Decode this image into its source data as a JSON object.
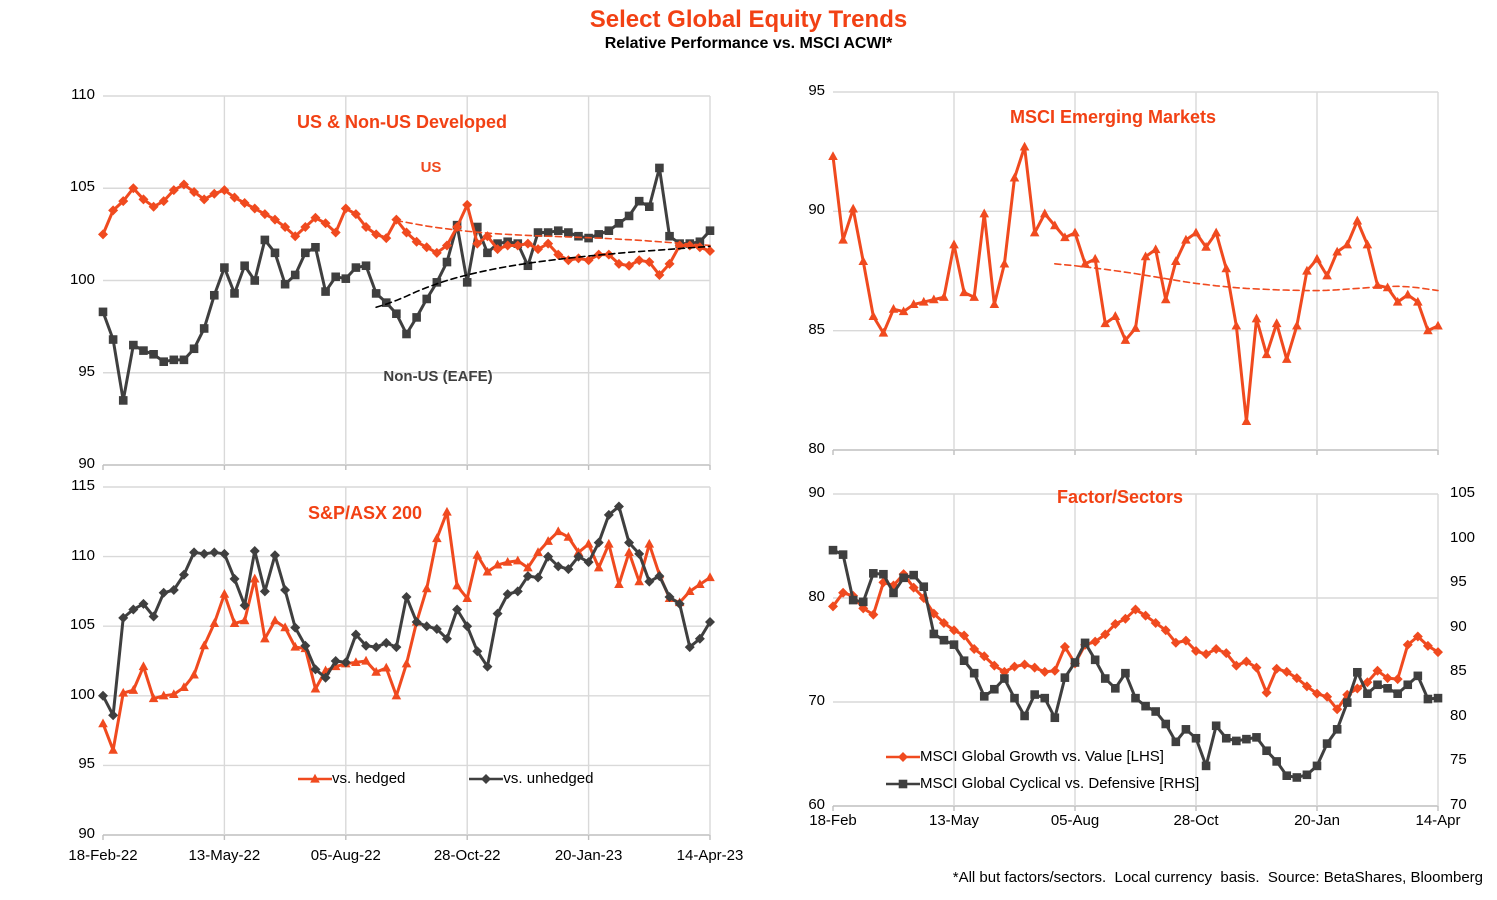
{
  "header": {
    "title": "Select Global Equity Trends",
    "subtitle": "Relative Performance vs. MSCI ACWI*"
  },
  "footer": {
    "note": "*All but factors/sectors.  Local currency  basis.  Source: BetaShares, Bloomberg"
  },
  "colors": {
    "accent": "#F24114",
    "series_orange": "#F04A1F",
    "series_dark": "#3F3F3F",
    "trend_black": "#000000",
    "grid": "#D9D9D9",
    "axis": "#BFBFBF"
  },
  "chart_data": [
    {
      "type": "line",
      "title": "US & Non-US Developed",
      "ylim": [
        90,
        110
      ],
      "yticks": [
        90,
        95,
        100,
        105,
        110
      ],
      "x_labels": [],
      "x_range_note": "weekly 18-Feb-22 to 14-Apr-23, gridlines at 13-May-22, 05-Aug-22, 28-Oct-22, 20-Jan-23, 14-Apr-23",
      "legend_position": "none",
      "grid": true,
      "annotations": [
        {
          "text": "US",
          "color": "#F04A1F"
        },
        {
          "text": "Non-US (EAFE)",
          "color": "#3F3F3F"
        }
      ],
      "series": [
        {
          "name": "Non-US (EAFE)",
          "color": "#3F3F3F",
          "marker": "square",
          "dash": false,
          "start": 0,
          "values": [
            98.3,
            96.8,
            93.5,
            96.5,
            96.2,
            96.0,
            95.6,
            95.7,
            95.7,
            96.3,
            97.4,
            99.2,
            100.7,
            99.3,
            100.8,
            100.0,
            102.2,
            101.5,
            99.8,
            100.3,
            101.5,
            101.8,
            99.4,
            100.2,
            100.1,
            100.7,
            100.8,
            99.3,
            98.8,
            98.2,
            97.1,
            98.0,
            99.0,
            99.9,
            101.0,
            103.0,
            99.9,
            102.9,
            101.5,
            102.0,
            102.1,
            102.0,
            100.8,
            102.6,
            102.6,
            102.7,
            102.6,
            102.4,
            102.3,
            102.5,
            102.7,
            103.1,
            103.5,
            104.3,
            104.0,
            106.1,
            102.4,
            102.0,
            102.0,
            102.1,
            102.7
          ]
        },
        {
          "name": "US",
          "color": "#F04A1F",
          "marker": "diamond",
          "dash": false,
          "start": 0,
          "values": [
            102.5,
            103.8,
            104.3,
            105.0,
            104.4,
            104.0,
            104.3,
            104.9,
            105.2,
            104.8,
            104.4,
            104.7,
            104.9,
            104.5,
            104.2,
            103.9,
            103.6,
            103.3,
            102.9,
            102.4,
            102.9,
            103.4,
            103.1,
            102.6,
            103.9,
            103.6,
            102.9,
            102.5,
            102.3,
            103.3,
            102.6,
            102.1,
            101.8,
            101.5,
            101.9,
            102.9,
            104.1,
            102.0,
            102.4,
            101.7,
            101.9,
            101.9,
            102.0,
            101.7,
            102.0,
            101.4,
            101.1,
            101.2,
            101.1,
            101.4,
            101.4,
            100.9,
            100.8,
            101.1,
            101.0,
            100.3,
            100.9,
            101.9,
            101.9,
            101.8,
            101.6
          ]
        },
        {
          "name": "US trend",
          "color": "#F04A1F",
          "marker": "none",
          "dash": true,
          "start": 29,
          "values": [
            103.25,
            103.15,
            103.05,
            102.95,
            102.87,
            102.8,
            102.73,
            102.67,
            102.62,
            102.57,
            102.53,
            102.5,
            102.47,
            102.44,
            102.42,
            102.4,
            102.38,
            102.36,
            102.34,
            102.32,
            102.3,
            102.27,
            102.24,
            102.21,
            102.18,
            102.14,
            102.1,
            102.06,
            102.02,
            101.98,
            101.94,
            101.9
          ]
        },
        {
          "name": "Non-US (EAFE) trend",
          "color": "#000000",
          "marker": "none",
          "dash": true,
          "start": 27,
          "values": [
            98.55,
            98.72,
            98.92,
            99.15,
            99.4,
            99.62,
            99.82,
            100.0,
            100.16,
            100.3,
            100.43,
            100.55,
            100.66,
            100.76,
            100.85,
            100.93,
            101.01,
            101.08,
            101.15,
            101.21,
            101.27,
            101.33,
            101.38,
            101.43,
            101.48,
            101.53,
            101.57,
            101.61,
            101.65,
            101.69,
            101.73,
            101.77,
            101.81,
            101.85
          ]
        }
      ]
    },
    {
      "type": "line",
      "title": "MSCI Emerging Markets",
      "ylim": [
        80,
        95
      ],
      "yticks": [
        80,
        85,
        90,
        95
      ],
      "x_labels": [],
      "x_range_note": "weekly 18-Feb-22 to 14-Apr-23",
      "legend_position": "none",
      "grid": true,
      "annotations": [],
      "series": [
        {
          "name": "MSCI Emerging Markets",
          "color": "#F04A1F",
          "marker": "triangle",
          "dash": false,
          "start": 0,
          "values": [
            92.3,
            88.8,
            90.1,
            87.9,
            85.6,
            84.9,
            85.9,
            85.8,
            86.1,
            86.2,
            86.3,
            86.4,
            88.6,
            86.6,
            86.4,
            89.9,
            86.1,
            87.8,
            91.4,
            92.7,
            89.1,
            89.9,
            89.4,
            88.9,
            89.1,
            87.8,
            88.0,
            85.3,
            85.6,
            84.6,
            85.1,
            88.1,
            88.4,
            86.3,
            87.9,
            88.8,
            89.1,
            88.5,
            89.1,
            87.6,
            85.2,
            81.2,
            85.5,
            84.0,
            85.3,
            83.8,
            85.2,
            87.5,
            88.0,
            87.3,
            88.3,
            88.6,
            89.6,
            88.6,
            86.9,
            86.8,
            86.2,
            86.5,
            86.2,
            85.0,
            85.2
          ]
        },
        {
          "name": "EM trend",
          "color": "#F04A1F",
          "marker": "none",
          "dash": true,
          "start": 22,
          "values": [
            87.8,
            87.76,
            87.72,
            87.67,
            87.62,
            87.57,
            87.51,
            87.45,
            87.39,
            87.32,
            87.25,
            87.18,
            87.11,
            87.04,
            86.98,
            86.93,
            86.88,
            86.84,
            86.8,
            86.77,
            86.75,
            86.73,
            86.71,
            86.7,
            86.69,
            86.68,
            86.68,
            86.69,
            86.71,
            86.74,
            86.77,
            86.8,
            86.83,
            86.85,
            86.86,
            86.84,
            86.8,
            86.74,
            86.68
          ]
        }
      ]
    },
    {
      "type": "line",
      "title": "S&P/ASX 200",
      "ylim": [
        90,
        115
      ],
      "yticks": [
        90,
        95,
        100,
        105,
        110,
        115
      ],
      "x_labels": [
        "18-Feb-22",
        "13-May-22",
        "05-Aug-22",
        "28-Oct-22",
        "20-Jan-23",
        "14-Apr-23"
      ],
      "legend_position": "inside-bottom",
      "grid": true,
      "annotations": [],
      "series": [
        {
          "name": "vs. hedged",
          "color": "#F04A1F",
          "marker": "triangle",
          "dash": false,
          "start": 0,
          "values": [
            98.0,
            96.1,
            100.2,
            100.4,
            102.1,
            99.8,
            100.0,
            100.1,
            100.6,
            101.5,
            103.6,
            105.2,
            107.3,
            105.2,
            105.4,
            108.4,
            104.1,
            105.4,
            104.9,
            103.5,
            103.4,
            100.5,
            101.8,
            102.1,
            102.3,
            102.4,
            102.5,
            101.7,
            102.0,
            100.0,
            102.3,
            105.3,
            107.7,
            111.3,
            113.2,
            107.9,
            107.0,
            110.1,
            108.9,
            109.4,
            109.6,
            109.7,
            109.2,
            110.3,
            111.1,
            111.8,
            111.4,
            110.3,
            110.9,
            109.2,
            110.9,
            108.0,
            110.3,
            108.2,
            110.9,
            108.7,
            107.0,
            106.7,
            107.5,
            108.0,
            108.5
          ]
        },
        {
          "name": "vs. unhedged",
          "color": "#3F3F3F",
          "marker": "diamond",
          "dash": false,
          "start": 0,
          "values": [
            100.0,
            98.6,
            105.6,
            106.2,
            106.6,
            105.7,
            107.4,
            107.6,
            108.7,
            110.3,
            110.2,
            110.3,
            110.2,
            108.4,
            106.5,
            110.4,
            107.5,
            110.1,
            107.6,
            104.9,
            103.6,
            101.9,
            101.3,
            102.5,
            102.4,
            104.4,
            103.6,
            103.5,
            103.8,
            103.5,
            107.1,
            105.3,
            105.0,
            104.8,
            104.1,
            106.2,
            105.0,
            103.2,
            102.1,
            105.9,
            107.3,
            107.5,
            108.6,
            108.5,
            110.0,
            109.3,
            109.1,
            110.0,
            109.6,
            111.0,
            113.0,
            113.6,
            111.0,
            110.2,
            108.2,
            108.6,
            107.1,
            106.6,
            103.5,
            104.1,
            105.3
          ]
        }
      ]
    },
    {
      "type": "line",
      "title": "Factor/Sectors",
      "ylim": [
        60,
        90
      ],
      "yticks": [
        60,
        70,
        80,
        90
      ],
      "ylim_right": [
        70,
        105
      ],
      "yticks_right": [
        70,
        75,
        80,
        85,
        90,
        95,
        100,
        105
      ],
      "x_labels": [
        "18-Feb",
        "13-May",
        "05-Aug",
        "28-Oct",
        "20-Jan",
        "14-Apr"
      ],
      "legend_position": "inside-bottom-left",
      "grid": true,
      "annotations": [],
      "series": [
        {
          "name": "MSCI Global Growth vs. Value [LHS]",
          "color": "#F04A1F",
          "marker": "diamond",
          "dash": false,
          "start": 0,
          "axis": "left",
          "values": [
            79.2,
            80.5,
            80.2,
            79.0,
            78.4,
            81.5,
            81.2,
            82.3,
            81.0,
            80.0,
            78.5,
            77.6,
            76.9,
            76.4,
            75.1,
            74.4,
            73.5,
            72.9,
            73.4,
            73.6,
            73.3,
            72.9,
            73.0,
            75.3,
            73.7,
            75.5,
            75.8,
            76.5,
            77.5,
            78.0,
            78.9,
            78.3,
            77.6,
            76.9,
            75.7,
            75.9,
            74.9,
            74.6,
            75.1,
            74.7,
            73.5,
            73.9,
            73.3,
            70.9,
            73.2,
            72.9,
            72.3,
            71.5,
            70.8,
            70.5,
            69.3,
            70.7,
            71.3,
            71.9,
            73.0,
            72.3,
            72.2,
            75.5,
            76.3,
            75.4,
            74.8
          ]
        },
        {
          "name": "MSCI Global Cyclical vs. Defensive [RHS]",
          "color": "#3F3F3F",
          "marker": "square",
          "dash": false,
          "start": 0,
          "axis": "right",
          "values": [
            98.7,
            98.2,
            93.1,
            92.9,
            96.1,
            96.0,
            93.9,
            95.6,
            95.9,
            94.6,
            89.3,
            88.6,
            88.1,
            86.3,
            84.9,
            82.3,
            83.1,
            84.3,
            82.1,
            80.1,
            82.5,
            82.1,
            79.9,
            84.4,
            86.1,
            88.3,
            86.4,
            84.3,
            83.2,
            84.9,
            82.1,
            81.2,
            80.6,
            79.2,
            77.2,
            78.6,
            77.6,
            74.5,
            79.0,
            77.6,
            77.3,
            77.5,
            77.7,
            76.2,
            75.0,
            73.4,
            73.2,
            73.5,
            74.5,
            77.0,
            78.6,
            81.6,
            85.0,
            82.6,
            83.6,
            83.2,
            82.6,
            83.6,
            84.6,
            82.0,
            82.1
          ]
        }
      ]
    }
  ]
}
